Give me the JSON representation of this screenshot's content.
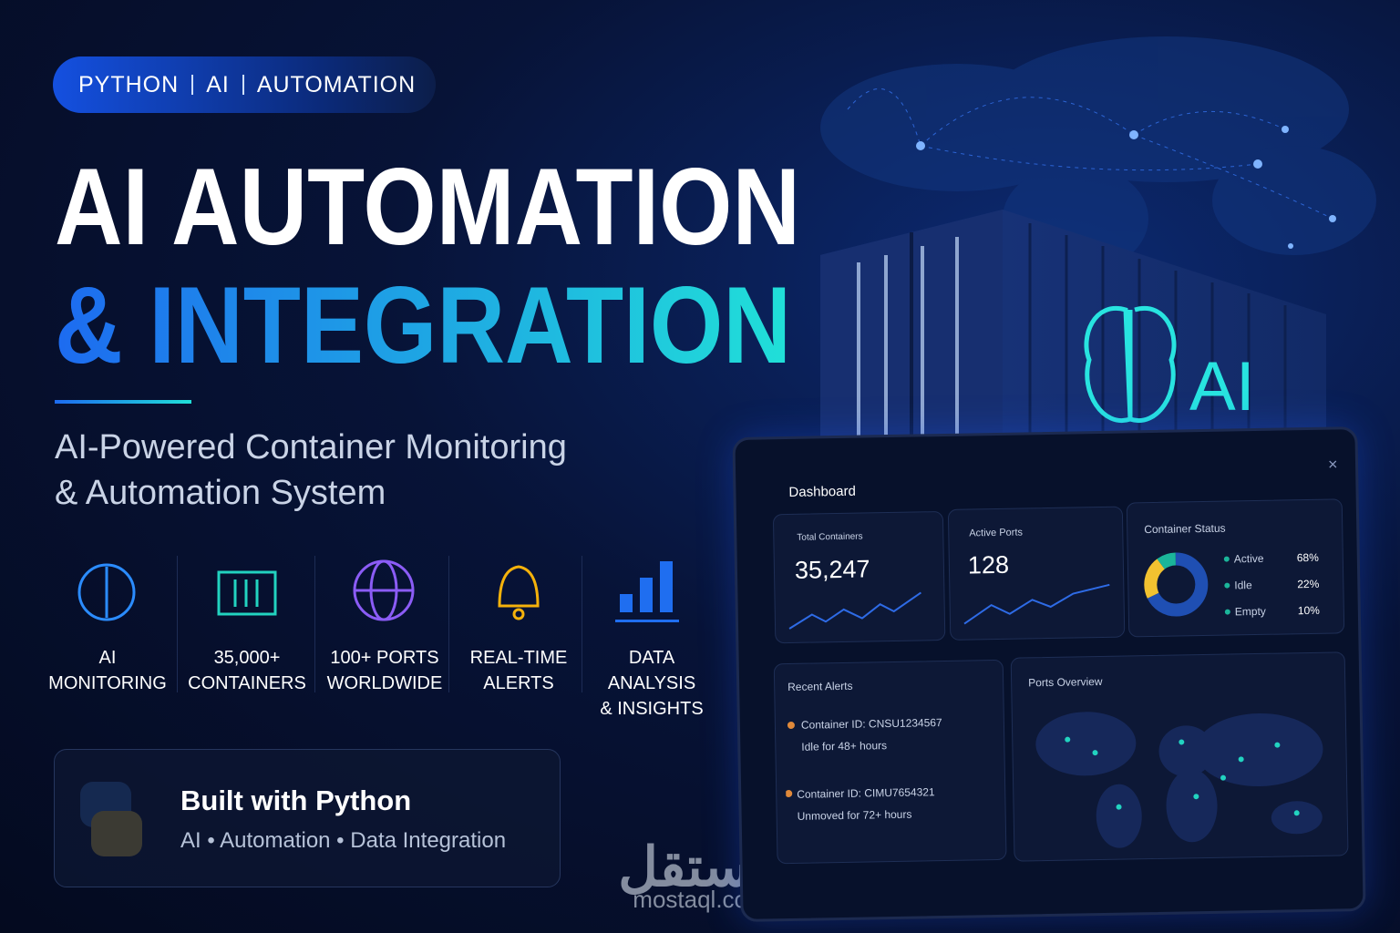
{
  "badge": [
    "PYTHON",
    "AI",
    "AUTOMATION"
  ],
  "title": {
    "line1": "AI AUTOMATION",
    "line2": "& INTEGRATION"
  },
  "subtitle": {
    "line1": "AI-Powered Container Monitoring",
    "line2": "& Automation System"
  },
  "features": [
    {
      "line1": "AI",
      "line2": "MONITORING"
    },
    {
      "line1": "35,000+",
      "line2": "CONTAINERS"
    },
    {
      "line1": "100+ PORTS",
      "line2": "WORLDWIDE"
    },
    {
      "line1": "REAL-TIME",
      "line2": "ALERTS"
    },
    {
      "line1": "DATA ANALYSIS",
      "line2": "& INSIGHTS"
    }
  ],
  "python_card": {
    "title": "Built with Python",
    "items": [
      "AI",
      "Automation",
      "Data Integration"
    ]
  },
  "container_label": "AI",
  "dashboard": {
    "title": "Dashboard",
    "cards": [
      {
        "label": "Total Containers",
        "value": "35,247"
      },
      {
        "label": "Active Ports",
        "value": "128"
      }
    ],
    "status": {
      "title": "Container Status",
      "categories": [
        "Active",
        "Idle",
        "Empty"
      ],
      "values": [
        68,
        22,
        10
      ],
      "value_labels": [
        "68%",
        "22%",
        "10%"
      ],
      "colors": [
        "#1f4fb3",
        "#f2c230",
        "#1bb59a"
      ]
    },
    "alerts": {
      "title": "Recent Alerts",
      "items": [
        {
          "id": "Container ID: CNSU1234567",
          "detail": "Idle for 48+ hours"
        },
        {
          "id": "Container ID: CIMU7654321",
          "detail": "Unmoved for 72+ hours"
        }
      ]
    },
    "ports_title": "Ports Overview"
  },
  "watermark": {
    "arabic": "مستقل",
    "latin": "mostaql.com"
  }
}
